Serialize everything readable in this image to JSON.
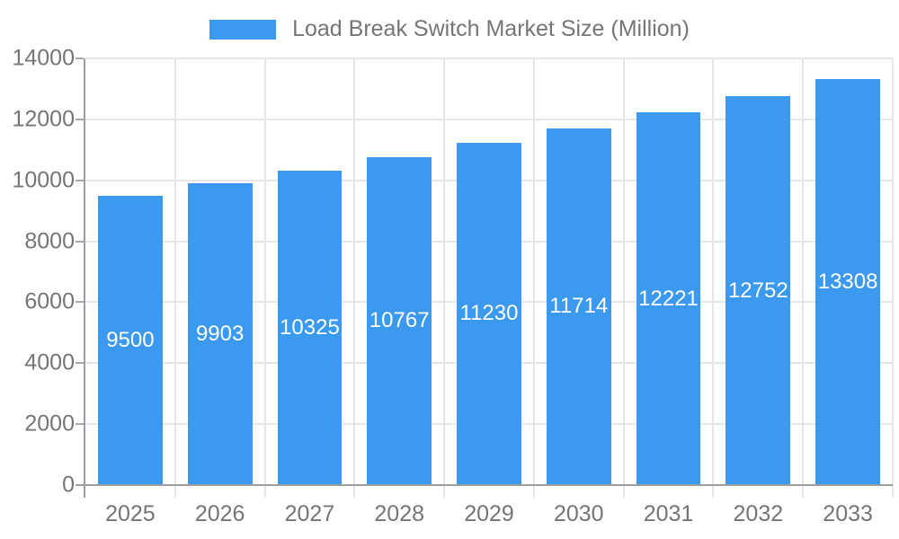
{
  "legend": {
    "label": "Load Break Switch Market Size (Million)",
    "swatch_color": "#3B9AEF"
  },
  "chart_data": {
    "type": "bar",
    "title": "Load Break Switch Market Size (Million)",
    "categories": [
      "2025",
      "2026",
      "2027",
      "2028",
      "2029",
      "2030",
      "2031",
      "2032",
      "2033"
    ],
    "values": [
      9500,
      9903,
      10325,
      10767,
      11230,
      11714,
      12221,
      12752,
      13308
    ],
    "xlabel": "",
    "ylabel": "",
    "ylim": [
      0,
      14000
    ],
    "yticks": [
      0,
      2000,
      4000,
      6000,
      8000,
      10000,
      12000,
      14000
    ],
    "grid": true,
    "legend_position": "top-center",
    "value_labels": "inside-center",
    "bar_width_fraction": 0.72
  },
  "colors": {
    "bar": "#3B9AEF",
    "axis_line": "#9e9e9e",
    "tick": "#a8a8a8",
    "gridline": "#e6e6e6",
    "axis_text": "#757575",
    "value_label_text": "#ffffff",
    "background": "#ffffff"
  }
}
